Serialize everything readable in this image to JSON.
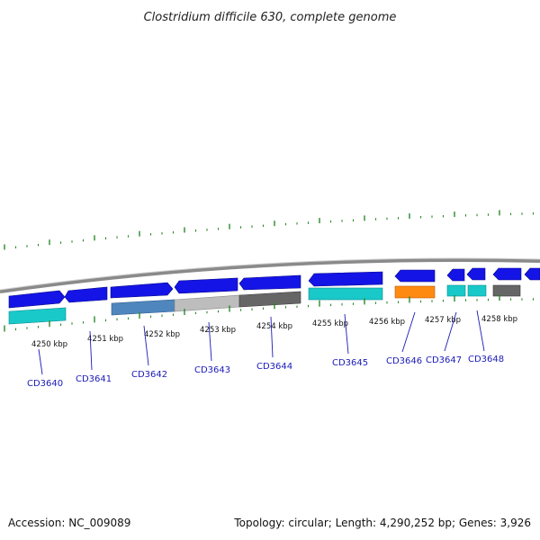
{
  "title": "Clostridium difficile 630, complete genome",
  "footer": {
    "accession": "Accession: NC_009089",
    "topology": "Topology: circular; Length: 4,290,252 bp; Genes: 3,926"
  },
  "colors": {
    "forward_gene": "#1414e6",
    "backbone": "#8a8a8a",
    "tick": "#2a8a2a",
    "label": "#1a1ab8",
    "teal": "#19c9c9",
    "steelblue": "#4f86bd",
    "lightgray": "#bdbdbd",
    "darkgray": "#666666",
    "orange": "#ff8a12"
  },
  "scale_labels": [
    {
      "text": "4250 kbp"
    },
    {
      "text": "4251 kbp"
    },
    {
      "text": "4252 kbp"
    },
    {
      "text": "4253 kbp"
    },
    {
      "text": "4254 kbp"
    },
    {
      "text": "4255 kbp"
    },
    {
      "text": "4256 kbp"
    },
    {
      "text": "4257 kbp"
    },
    {
      "text": "4258 kbp"
    }
  ],
  "genes": [
    {
      "id": "CD3640",
      "category": "teal"
    },
    {
      "id": "CD3641",
      "category": "none"
    },
    {
      "id": "CD3642",
      "category": "steelblue"
    },
    {
      "id": "CD3643",
      "category": "lightgray"
    },
    {
      "id": "CD3644",
      "category": "darkgray"
    },
    {
      "id": "CD3645",
      "category": "teal"
    },
    {
      "id": "CD3646",
      "category": "orange"
    },
    {
      "id": "CD3647",
      "category": "teal"
    },
    {
      "id": "CD3648",
      "category": "teal"
    }
  ]
}
